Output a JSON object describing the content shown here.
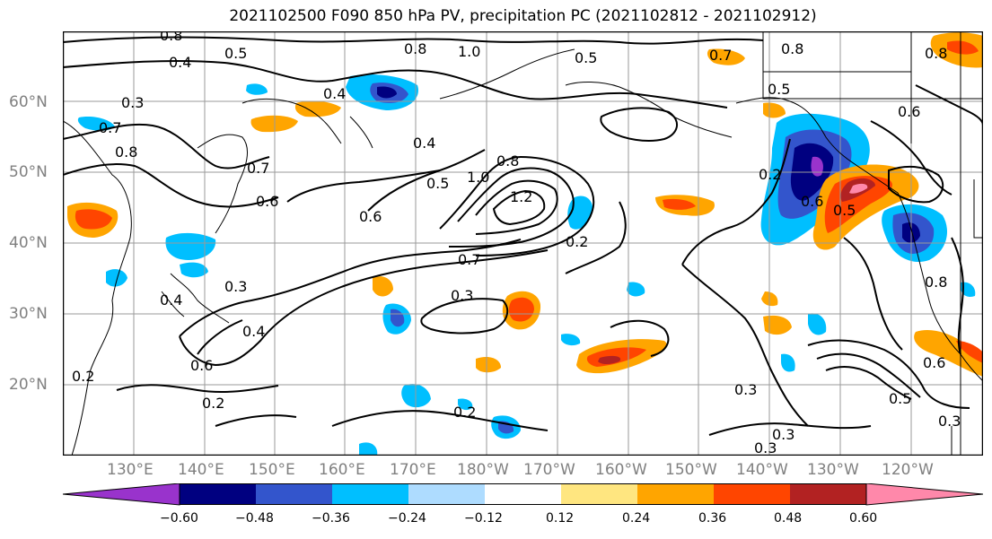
{
  "title": "2021102500 F090 850 hPa PV, precipitation PC (2021102812 - 2021102912)",
  "latitude_labels": [
    "60°N",
    "50°N",
    "40°N",
    "30°N",
    "20°N"
  ],
  "longitude_labels": [
    "130°E",
    "140°E",
    "150°E",
    "160°E",
    "170°E",
    "180°W",
    "170°W",
    "160°W",
    "150°W",
    "140°W",
    "130°W",
    "120°W"
  ],
  "colorbar": {
    "tick_labels": [
      "−0.60",
      "−0.48",
      "−0.36",
      "−0.24",
      "−0.12",
      "0.12",
      "0.24",
      "0.36",
      "0.48",
      "0.60"
    ],
    "colors": [
      "#9933cc",
      "#000080",
      "#3355cc",
      "#00bfff",
      "#aedcff",
      "#ffffff",
      "#ffe680",
      "#ffa500",
      "#ff4500",
      "#b22222",
      "#ff88aa"
    ]
  },
  "contour_labels": [
    "0.8",
    "0.4",
    "0.5",
    "0.8",
    "1.0",
    "0.5",
    "0.7",
    "0.8",
    "0.8",
    "0.5",
    "0.6",
    "0.3",
    "0.7",
    "0.8",
    "0.4",
    "0.4",
    "0.7",
    "0.6",
    "0.5",
    "0.6",
    "1.0",
    "0.8",
    "1.2",
    "0.2",
    "0.2",
    "0.6",
    "0.5",
    "0.7",
    "0.3",
    "0.4",
    "0.3",
    "0.4",
    "0.6",
    "0.2",
    "0.2",
    "0.3",
    "0.2",
    "0.3",
    "0.5",
    "0.3",
    "0.6",
    "0.8",
    "0.3"
  ]
}
